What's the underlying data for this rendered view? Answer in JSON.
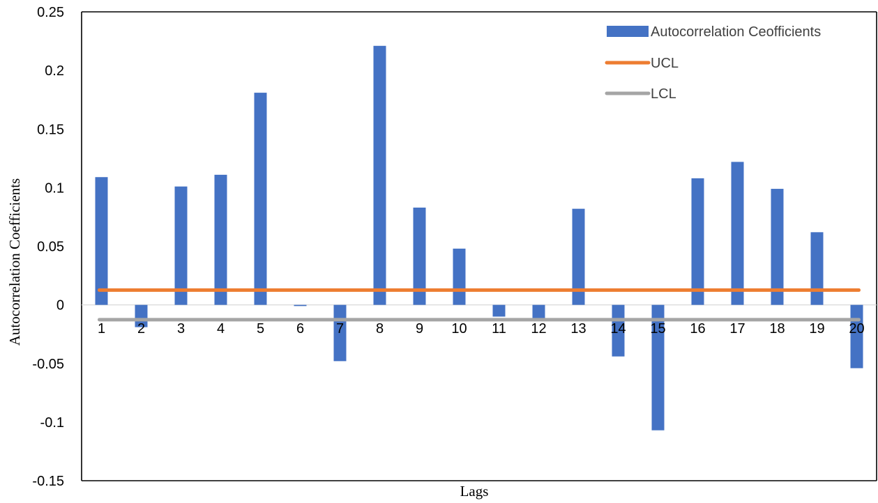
{
  "chart_data": {
    "type": "bar",
    "title": "",
    "xlabel": "Lags",
    "ylabel": "Autocorrelation Coefficients",
    "categories": [
      "1",
      "2",
      "3",
      "4",
      "5",
      "6",
      "7",
      "8",
      "9",
      "10",
      "11",
      "12",
      "13",
      "14",
      "15",
      "16",
      "17",
      "18",
      "19",
      "20"
    ],
    "series": [
      {
        "name": "Autocorrelation Ceofficients",
        "type": "bar",
        "color": "#4472C4",
        "values": [
          0.109,
          -0.019,
          0.101,
          0.111,
          0.181,
          -0.001,
          -0.048,
          0.221,
          0.083,
          0.048,
          -0.01,
          -0.013,
          0.082,
          -0.044,
          -0.107,
          0.108,
          0.122,
          0.099,
          0.062,
          -0.054
        ]
      },
      {
        "name": "UCL",
        "type": "line",
        "color": "#ED7D31",
        "value": 0.0126
      },
      {
        "name": "LCL",
        "type": "line",
        "color": "#A5A5A5",
        "value": -0.0126
      }
    ],
    "ylim": [
      -0.15,
      0.25
    ],
    "yticks": [
      "-0.15",
      "-0.1",
      "-0.05",
      "0",
      "0.05",
      "0.1",
      "0.15",
      "0.2",
      "0.25"
    ],
    "grid": false,
    "legend_position": "top-right"
  }
}
